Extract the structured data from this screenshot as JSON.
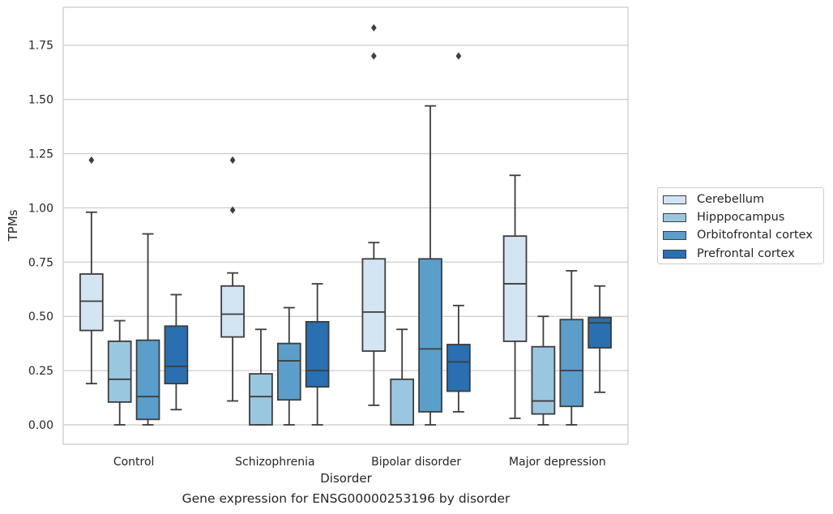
{
  "chart_data": {
    "type": "box",
    "title": "",
    "caption": "Gene expression for ENSG00000253196 by disorder",
    "xlabel": "Disorder",
    "ylabel": "TPMs",
    "ylim": [
      -0.09,
      1.93
    ],
    "yticks": [
      0.0,
      0.25,
      0.5,
      0.75,
      1.0,
      1.25,
      1.5,
      1.75
    ],
    "ytick_labels": [
      "0.00",
      "0.25",
      "0.50",
      "0.75",
      "1.00",
      "1.25",
      "1.50",
      "1.75"
    ],
    "grid": "horizontal",
    "legend_position": "right",
    "categories": [
      "Control",
      "Schizophrenia",
      "Bipolar disorder",
      "Major depression"
    ],
    "series": [
      {
        "name": "Cerebellum",
        "color": "#d3e4f3",
        "boxes": [
          {
            "whislo": 0.19,
            "q1": 0.435,
            "med": 0.57,
            "q3": 0.695,
            "whishi": 0.98,
            "fliers": [
              1.22
            ]
          },
          {
            "whislo": 0.11,
            "q1": 0.405,
            "med": 0.51,
            "q3": 0.64,
            "whishi": 0.7,
            "fliers": [
              0.99,
              1.22
            ]
          },
          {
            "whislo": 0.09,
            "q1": 0.34,
            "med": 0.52,
            "q3": 0.765,
            "whishi": 0.84,
            "fliers": [
              1.7,
              1.83
            ]
          },
          {
            "whislo": 0.03,
            "q1": 0.385,
            "med": 0.65,
            "q3": 0.87,
            "whishi": 1.15,
            "fliers": []
          }
        ]
      },
      {
        "name": "Hipppocampus",
        "color": "#9ac7e0",
        "boxes": [
          {
            "whislo": 0.0,
            "q1": 0.105,
            "med": 0.21,
            "q3": 0.385,
            "whishi": 0.48,
            "fliers": []
          },
          {
            "whislo": 0.0,
            "q1": 0.0,
            "med": 0.13,
            "q3": 0.235,
            "whishi": 0.44,
            "fliers": []
          },
          {
            "whislo": 0.0,
            "q1": 0.0,
            "med": 0.0,
            "q3": 0.21,
            "whishi": 0.44,
            "fliers": []
          },
          {
            "whislo": 0.0,
            "q1": 0.05,
            "med": 0.11,
            "q3": 0.36,
            "whishi": 0.5,
            "fliers": []
          }
        ]
      },
      {
        "name": "Orbitofrontal cortex",
        "color": "#5b9ec9",
        "boxes": [
          {
            "whislo": 0.0,
            "q1": 0.025,
            "med": 0.13,
            "q3": 0.39,
            "whishi": 0.88,
            "fliers": []
          },
          {
            "whislo": 0.0,
            "q1": 0.115,
            "med": 0.295,
            "q3": 0.375,
            "whishi": 0.54,
            "fliers": []
          },
          {
            "whislo": 0.0,
            "q1": 0.06,
            "med": 0.35,
            "q3": 0.765,
            "whishi": 1.47,
            "fliers": []
          },
          {
            "whislo": 0.0,
            "q1": 0.085,
            "med": 0.25,
            "q3": 0.485,
            "whishi": 0.71,
            "fliers": []
          }
        ]
      },
      {
        "name": "Prefrontal cortex",
        "color": "#2a6fb0",
        "boxes": [
          {
            "whislo": 0.07,
            "q1": 0.19,
            "med": 0.27,
            "q3": 0.455,
            "whishi": 0.6,
            "fliers": []
          },
          {
            "whislo": 0.0,
            "q1": 0.175,
            "med": 0.25,
            "q3": 0.475,
            "whishi": 0.65,
            "fliers": []
          },
          {
            "whislo": 0.06,
            "q1": 0.155,
            "med": 0.29,
            "q3": 0.37,
            "whishi": 0.55,
            "fliers": [
              1.7
            ]
          },
          {
            "whislo": 0.15,
            "q1": 0.355,
            "med": 0.47,
            "q3": 0.495,
            "whishi": 0.64,
            "fliers": []
          }
        ]
      }
    ]
  }
}
